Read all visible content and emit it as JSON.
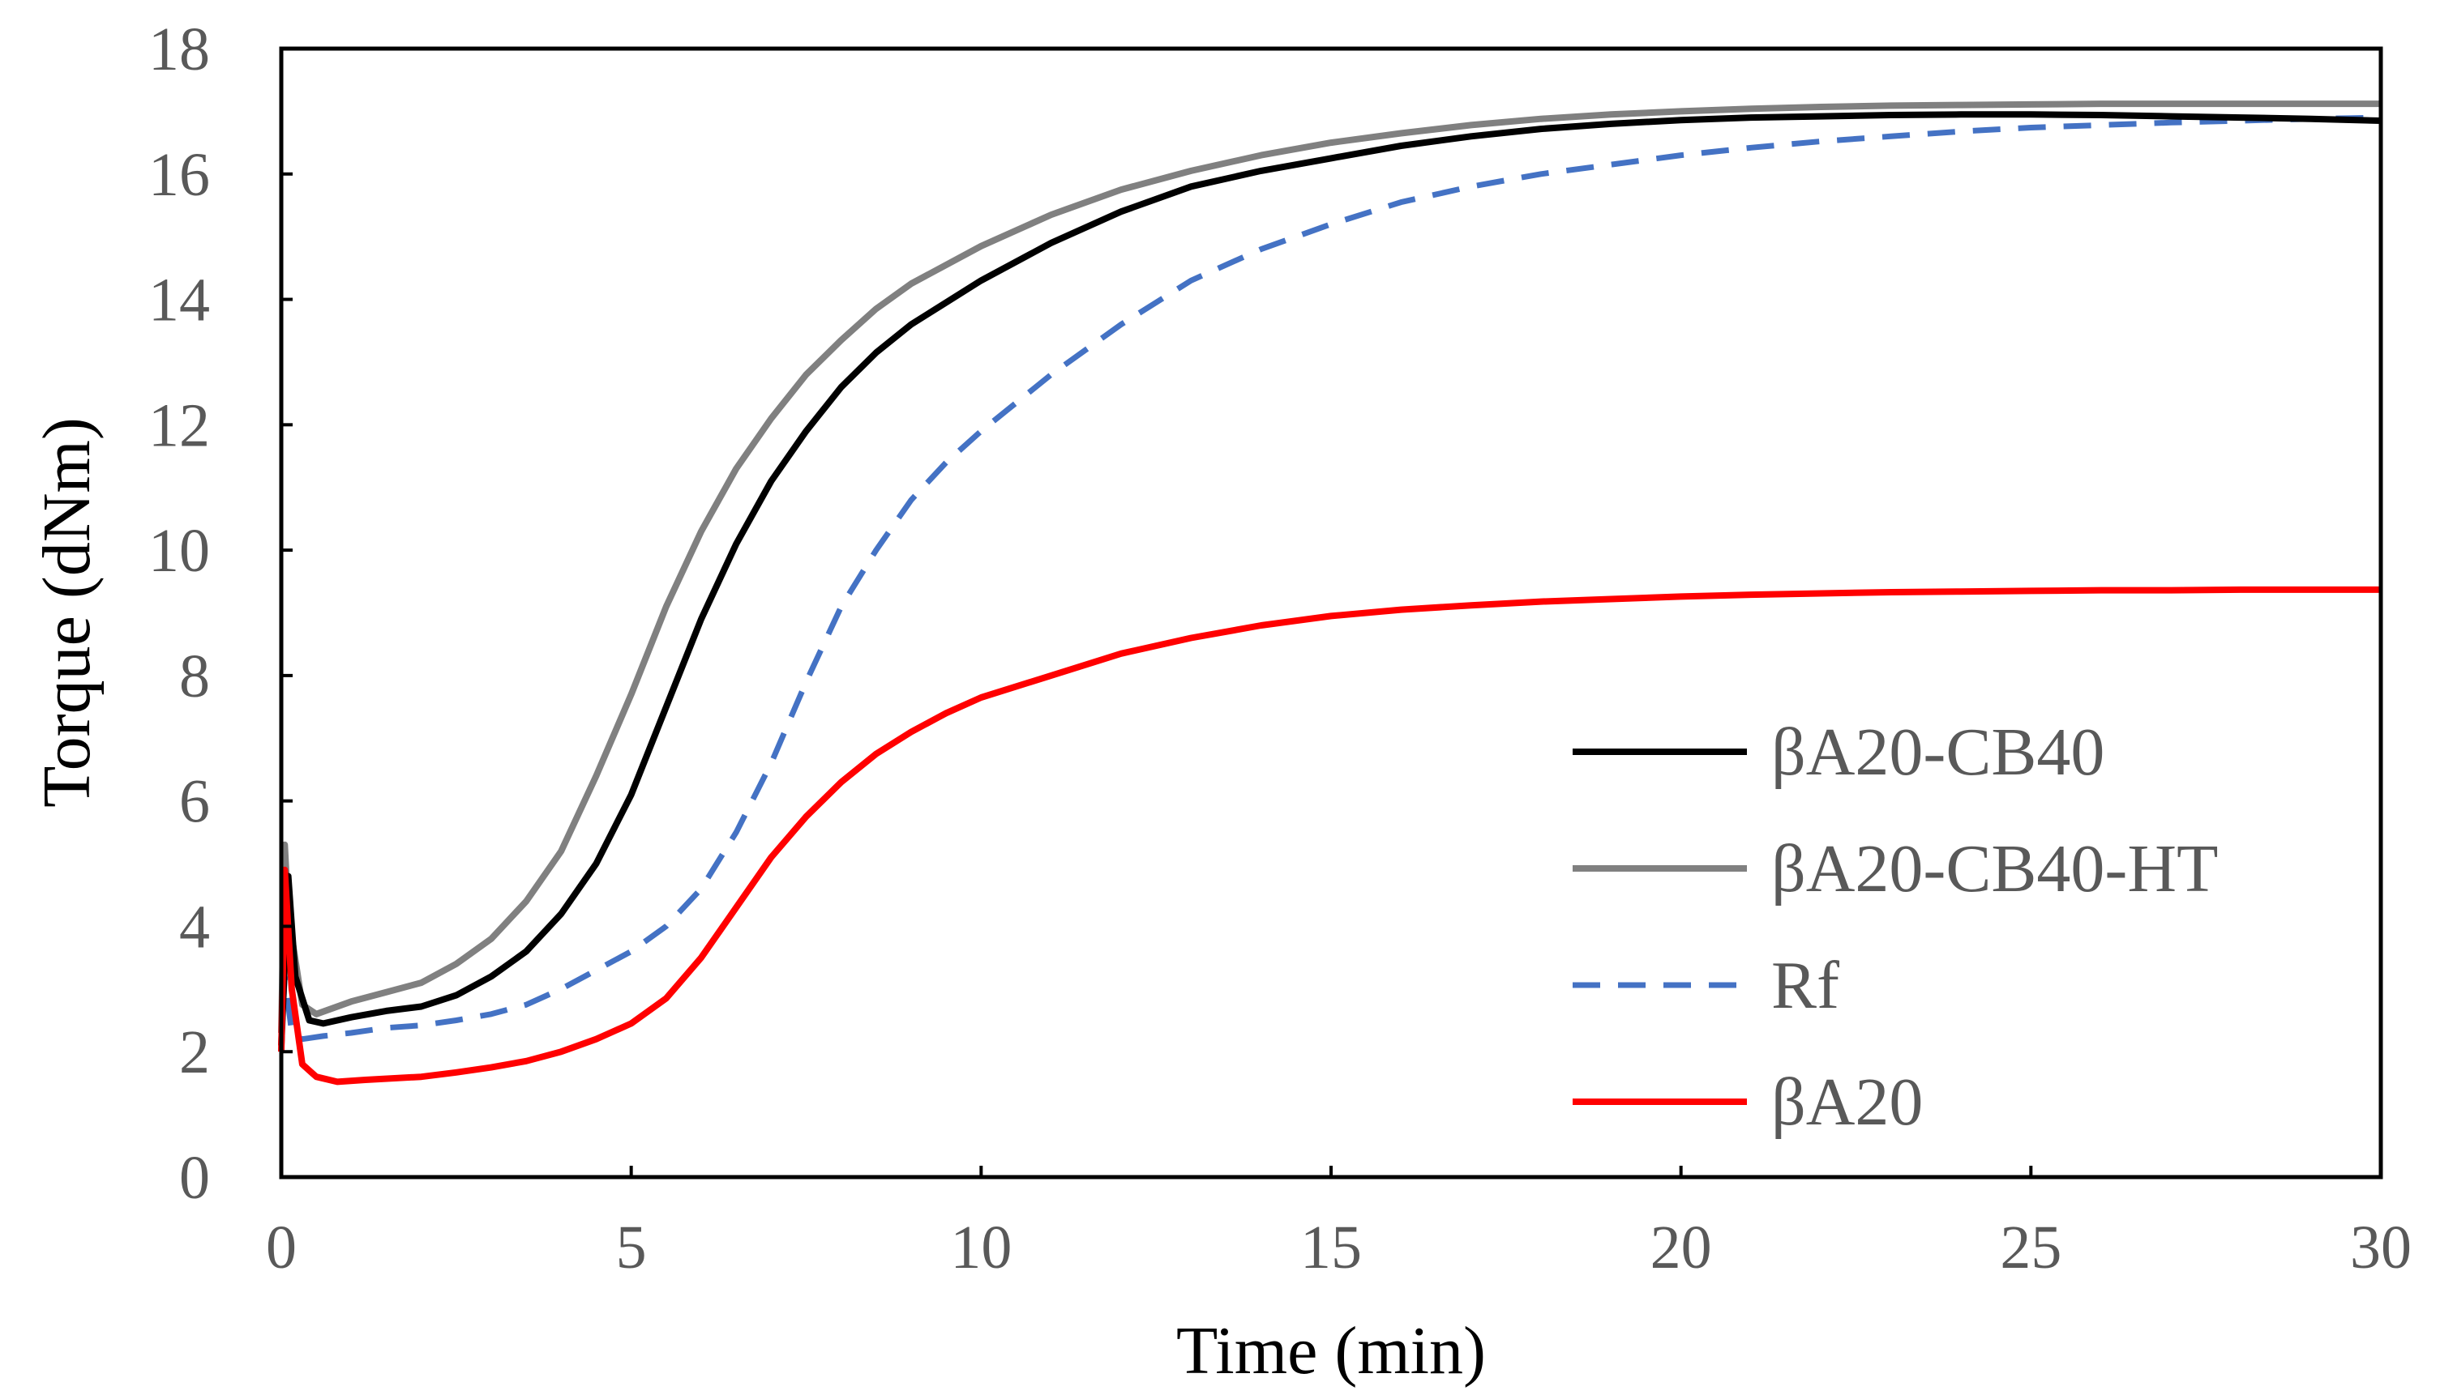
{
  "chart_data": {
    "type": "line",
    "title": "",
    "xlabel": "Time (min)",
    "ylabel": "Torque (dNm)",
    "xlim": [
      0,
      30
    ],
    "ylim": [
      0,
      18
    ],
    "xticks": [
      "0",
      "5",
      "10",
      "15",
      "20",
      "25",
      "30"
    ],
    "yticks": [
      "0",
      "2",
      "4",
      "6",
      "8",
      "10",
      "12",
      "14",
      "16",
      "18"
    ],
    "grid": false,
    "legend_position": "bottom-right",
    "series": [
      {
        "name": "βA20-CB40",
        "color": "#000000",
        "dash": "solid",
        "x": [
          0,
          0.1,
          0.2,
          0.4,
          0.6,
          1,
          1.5,
          2,
          2.5,
          3,
          3.5,
          4,
          4.5,
          5,
          5.5,
          6,
          6.5,
          7,
          7.5,
          8,
          8.5,
          9,
          10,
          11,
          12,
          13,
          14,
          15,
          16,
          17,
          18,
          19,
          20,
          21,
          22,
          23,
          24,
          25,
          26,
          27,
          28,
          29,
          30
        ],
        "y": [
          2.1,
          4.8,
          3.2,
          2.5,
          2.45,
          2.55,
          2.65,
          2.72,
          2.9,
          3.2,
          3.6,
          4.2,
          5.0,
          6.1,
          7.5,
          8.9,
          10.1,
          11.1,
          11.9,
          12.6,
          13.15,
          13.6,
          14.3,
          14.9,
          15.4,
          15.8,
          16.05,
          16.25,
          16.45,
          16.6,
          16.72,
          16.8,
          16.86,
          16.9,
          16.92,
          16.94,
          16.95,
          16.95,
          16.94,
          16.92,
          16.9,
          16.88,
          16.85
        ]
      },
      {
        "name": "βA20-CB40-HT",
        "color": "#808080",
        "dash": "solid",
        "x": [
          0,
          0.05,
          0.1,
          0.3,
          0.5,
          1,
          1.5,
          2,
          2.5,
          3,
          3.5,
          4,
          4.5,
          5,
          5.5,
          6,
          6.5,
          7,
          7.5,
          8,
          8.5,
          9,
          10,
          11,
          12,
          13,
          14,
          15,
          16,
          17,
          18,
          19,
          20,
          21,
          22,
          23,
          24,
          25,
          26,
          27,
          28,
          29,
          30
        ],
        "y": [
          2.3,
          5.3,
          4.2,
          2.75,
          2.6,
          2.8,
          2.95,
          3.1,
          3.4,
          3.8,
          4.4,
          5.2,
          6.4,
          7.7,
          9.1,
          10.3,
          11.3,
          12.1,
          12.8,
          13.35,
          13.85,
          14.25,
          14.85,
          15.35,
          15.75,
          16.05,
          16.3,
          16.5,
          16.65,
          16.78,
          16.88,
          16.95,
          17.0,
          17.04,
          17.07,
          17.09,
          17.1,
          17.11,
          17.12,
          17.12,
          17.12,
          17.12,
          17.12
        ]
      },
      {
        "name": "Rf",
        "color": "#4472C4",
        "dash": "dashed",
        "x": [
          0,
          0.05,
          0.15,
          0.3,
          0.6,
          1,
          1.5,
          2,
          2.5,
          3,
          3.5,
          4,
          4.5,
          5,
          5.5,
          6,
          6.5,
          7,
          7.5,
          8,
          8.5,
          9,
          9.5,
          10,
          11,
          12,
          13,
          14,
          15,
          16,
          17,
          18,
          19,
          20,
          21,
          22,
          23,
          24,
          25,
          26,
          27,
          28,
          29,
          30
        ],
        "y": [
          2.1,
          3.2,
          2.3,
          2.2,
          2.25,
          2.3,
          2.38,
          2.42,
          2.5,
          2.6,
          2.75,
          3.0,
          3.3,
          3.6,
          4.0,
          4.6,
          5.5,
          6.6,
          7.9,
          9.1,
          10.0,
          10.8,
          11.4,
          11.9,
          12.8,
          13.6,
          14.3,
          14.8,
          15.2,
          15.55,
          15.8,
          16.0,
          16.15,
          16.3,
          16.42,
          16.52,
          16.6,
          16.68,
          16.74,
          16.78,
          16.82,
          16.85,
          16.88,
          16.9
        ]
      },
      {
        "name": "βA20",
        "color": "#FF0000",
        "dash": "solid",
        "x": [
          0,
          0.05,
          0.15,
          0.3,
          0.5,
          0.8,
          1.2,
          2,
          2.5,
          3,
          3.5,
          4,
          4.5,
          5,
          5.5,
          6,
          6.5,
          7,
          7.5,
          8,
          8.5,
          9,
          9.5,
          10,
          11,
          12,
          13,
          14,
          15,
          16,
          17,
          18,
          19,
          20,
          21,
          22,
          23,
          24,
          25,
          26,
          27,
          28,
          29,
          30
        ],
        "y": [
          2.0,
          4.9,
          3.0,
          1.8,
          1.6,
          1.52,
          1.55,
          1.6,
          1.67,
          1.75,
          1.85,
          2.0,
          2.2,
          2.45,
          2.85,
          3.5,
          4.3,
          5.1,
          5.75,
          6.3,
          6.75,
          7.1,
          7.4,
          7.65,
          8.0,
          8.35,
          8.6,
          8.8,
          8.95,
          9.05,
          9.12,
          9.18,
          9.22,
          9.26,
          9.29,
          9.31,
          9.33,
          9.34,
          9.35,
          9.36,
          9.36,
          9.37,
          9.37,
          9.37
        ]
      }
    ]
  }
}
